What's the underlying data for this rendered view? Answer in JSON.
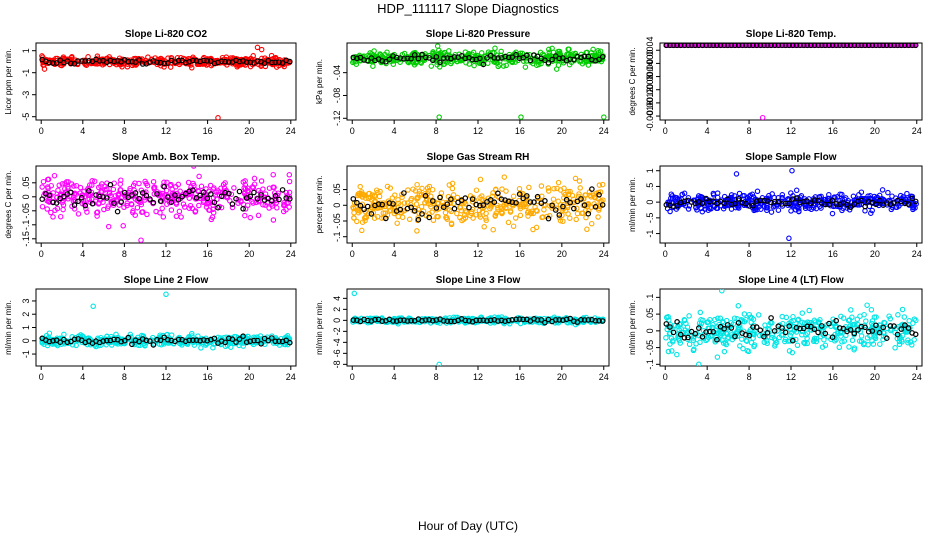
{
  "figure": {
    "title": "HDP_111117  Slope Diagnostics",
    "xlabel": "Hour of Day (UTC)"
  },
  "chart_data": [
    {
      "type": "scatter",
      "title": "Slope Li-820 CO2",
      "ylabel": "Licor ppm per min.",
      "color": "#ff0000",
      "xlim": [
        -0.5,
        24.5
      ],
      "ylim": [
        -5.3,
        1.7
      ],
      "xticks": [
        0,
        4,
        8,
        12,
        16,
        20,
        24
      ],
      "yticks": [
        1,
        -1,
        -3,
        -5
      ],
      "center": 0.0,
      "spread": 0.35,
      "outliers": [
        [
          17,
          -5.1
        ],
        [
          20.8,
          1.3
        ],
        [
          21.2,
          1.1
        ]
      ]
    },
    {
      "type": "scatter",
      "title": "Slope Li-820 Pressure",
      "ylabel": "kPa per min.",
      "color": "#00cc00",
      "xlim": [
        -0.5,
        24.5
      ],
      "ylim": [
        -0.123,
        0.012
      ],
      "xticks": [
        0,
        4,
        8,
        12,
        16,
        20,
        24
      ],
      "yticks": [
        -0.04,
        -0.08,
        -0.12
      ],
      "center": -0.015,
      "spread": 0.012,
      "outliers": [
        [
          8.3,
          -0.118
        ],
        [
          16.1,
          -0.118
        ],
        [
          24,
          -0.118
        ]
      ]
    },
    {
      "type": "scatter",
      "title": "Slope Li-820 Temp.",
      "ylabel": "degrees C per min.",
      "color": "#ff00ff",
      "xlim": [
        -0.5,
        24.5
      ],
      "ylim": [
        -0.00172,
        0.00062
      ],
      "xticks": [
        0,
        4,
        8,
        12,
        16,
        20,
        24
      ],
      "yticks": [
        0.0004,
        0.0,
        -0.0004,
        -0.0008,
        -0.0012,
        -0.0016
      ],
      "center": 0.00055,
      "spread": 0.0,
      "outliers": [
        [
          9.3,
          -0.00165
        ]
      ]
    },
    {
      "type": "scatter",
      "title": "Slope Amb. Box Temp.",
      "ylabel": "degrees C per min.",
      "color": "#ff00ff",
      "xlim": [
        -0.5,
        24.5
      ],
      "ylim": [
        -0.165,
        0.11
      ],
      "xticks": [
        0,
        4,
        8,
        12,
        16,
        20,
        24
      ],
      "yticks": [
        0.05,
        0.0,
        -0.05,
        -0.1,
        -0.15
      ],
      "center": 0.0,
      "spread": 0.06,
      "outliers": [
        [
          9.6,
          -0.155
        ]
      ]
    },
    {
      "type": "scatter",
      "title": "Slope Gas Stream RH",
      "ylabel": "percent per min.",
      "color": "#ffaa00",
      "xlim": [
        -0.5,
        24.5
      ],
      "ylim": [
        -0.12,
        0.125
      ],
      "xticks": [
        0,
        4,
        8,
        12,
        16,
        20,
        24
      ],
      "yticks": [
        0.05,
        0.0,
        -0.05,
        -0.1
      ],
      "center": 0.0,
      "spread": 0.06,
      "outliers": []
    },
    {
      "type": "scatter",
      "title": "Slope Sample Flow",
      "ylabel": "ml/min per min.",
      "color": "#0000ff",
      "xlim": [
        -0.5,
        24.5
      ],
      "ylim": [
        -1.3,
        1.15
      ],
      "xticks": [
        0,
        4,
        8,
        12,
        16,
        20,
        24
      ],
      "yticks": [
        1.0,
        0.5,
        0.0,
        -0.5,
        -1.0
      ],
      "center": 0.0,
      "spread": 0.25,
      "outliers": [
        [
          12.1,
          1.0
        ],
        [
          11.8,
          -1.15
        ],
        [
          6.8,
          0.9
        ]
      ]
    },
    {
      "type": "scatter",
      "title": "Slope Line 2 Flow",
      "ylabel": "ml/min per min.",
      "color": "#00e5e5",
      "xlim": [
        -0.5,
        24.5
      ],
      "ylim": [
        -1.9,
        3.9
      ],
      "xticks": [
        0,
        4,
        8,
        12,
        16,
        20,
        24
      ],
      "yticks": [
        3,
        2,
        1,
        0,
        -1
      ],
      "center": 0.0,
      "spread": 0.35,
      "outliers": [
        [
          12,
          3.5
        ],
        [
          5,
          2.6
        ]
      ]
    },
    {
      "type": "scatter",
      "title": "Slope Line 3 Flow",
      "ylabel": "ml/min per min.",
      "color": "#00e5e5",
      "xlim": [
        -0.5,
        24.5
      ],
      "ylim": [
        -8.3,
        5.7
      ],
      "xticks": [
        0,
        4,
        8,
        12,
        16,
        20,
        24
      ],
      "yticks": [
        4,
        2,
        0,
        -2,
        -4,
        -6,
        -8
      ],
      "center": 0.0,
      "spread": 0.45,
      "outliers": [
        [
          0.2,
          4.9
        ],
        [
          8.3,
          -8.0
        ]
      ]
    },
    {
      "type": "scatter",
      "title": "Slope Line 4 (LT) Flow",
      "ylabel": "ml/min per min.",
      "color": "#00e5e5",
      "xlim": [
        -0.5,
        24.5
      ],
      "ylim": [
        -0.105,
        0.125
      ],
      "xticks": [
        0,
        4,
        8,
        12,
        16,
        20,
        24
      ],
      "yticks": [
        0.1,
        0.05,
        0.0,
        -0.05,
        -0.1
      ],
      "center": 0.0,
      "spread": 0.05,
      "outliers": [
        [
          5.4,
          0.12
        ],
        [
          3.2,
          -0.1
        ]
      ]
    }
  ]
}
